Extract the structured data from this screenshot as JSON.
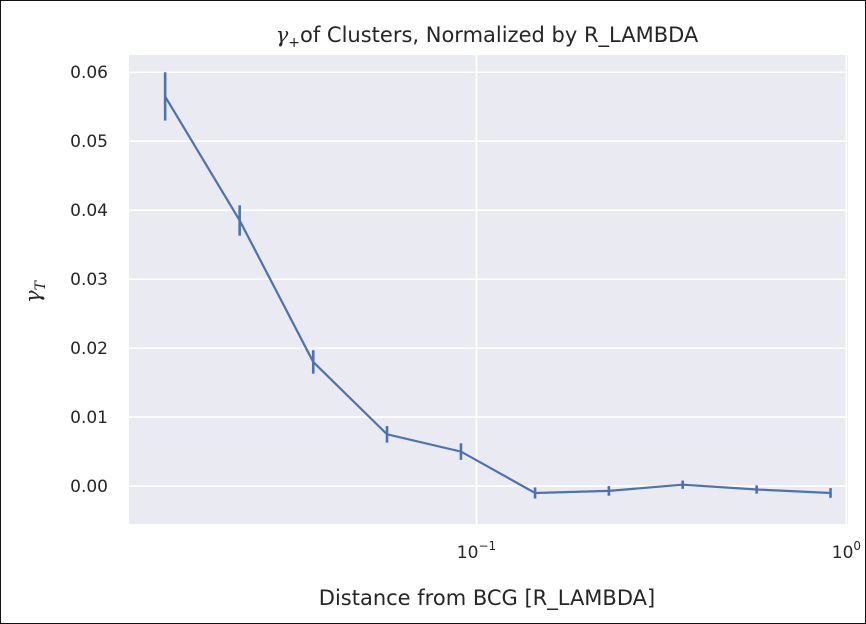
{
  "chart_data": {
    "type": "line",
    "title": "of Clusters, Normalized by R_LAMBDA",
    "title_symbol": "γ",
    "title_symbol_sub": "+",
    "xlabel": "Distance from BCG [R_LAMBDA]",
    "ylabel_symbol": "γ",
    "ylabel_sub": "T",
    "x_scale": "log",
    "xlim": [
      0.0115,
      1.01
    ],
    "ylim": [
      -0.0055,
      0.0625
    ],
    "x_ticks": [
      {
        "value": 0.1,
        "base": "10",
        "exp": "−1"
      },
      {
        "value": 1.0,
        "base": "10",
        "exp": "0"
      }
    ],
    "y_ticks": [
      0.0,
      0.01,
      0.02,
      0.03,
      0.04,
      0.05,
      0.06
    ],
    "y_tick_labels": [
      "0.00",
      "0.01",
      "0.02",
      "0.03",
      "0.04",
      "0.05",
      "0.06"
    ],
    "grid": true,
    "background": "#eaeaf2",
    "line_color": "#4c72b0",
    "series": [
      {
        "x": [
          0.0144,
          0.0229,
          0.0362,
          0.0573,
          0.0908,
          0.144,
          0.228,
          0.361,
          0.572,
          0.906
        ],
        "y": [
          0.0565,
          0.0385,
          0.018,
          0.0075,
          0.005,
          -0.001,
          -0.0007,
          0.0002,
          -0.0005,
          -0.001
        ],
        "yerr": [
          0.0035,
          0.0022,
          0.0017,
          0.0012,
          0.0012,
          0.0008,
          0.0007,
          0.0006,
          0.0006,
          0.0007
        ]
      }
    ]
  }
}
